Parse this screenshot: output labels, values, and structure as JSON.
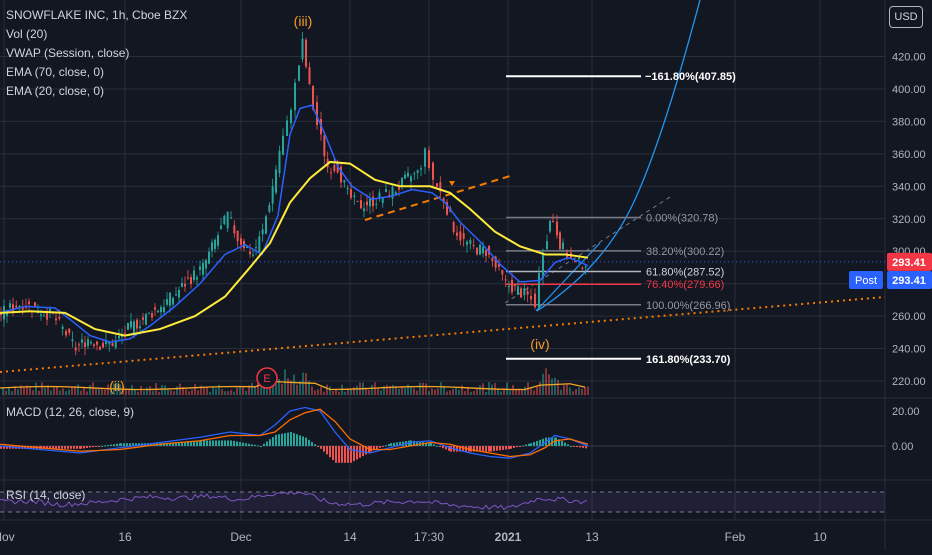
{
  "legend": {
    "title": "SNOWFLAKE INC, 1h, Cboe BZX",
    "lines": [
      "Vol (20)",
      "VWAP (Session, close)",
      "EMA (70, close, 0)",
      "EMA (20, close, 0)"
    ]
  },
  "currency_button": "USD",
  "price_badge": "293.41",
  "post_label": "Post",
  "post_value": "293.41",
  "colors": {
    "background": "#131722",
    "grid": "#2a2e39",
    "ema20": "#2962ff",
    "ema70": "#ffeb3b",
    "fib": "#ffffff",
    "trend_dotted": "#f57c00",
    "wave_label": "#f59c2a",
    "price_badge": "#f23645",
    "post_badge": "#2962ff"
  },
  "chart_data": [
    {
      "type": "line",
      "title": "SNOWFLAKE INC, 1h, Cboe BZX",
      "x_tick_labels": [
        "Nov",
        "16",
        "Dec",
        "14",
        "17:30",
        "2021",
        "13",
        "Feb",
        "10"
      ],
      "ylim": [
        210,
        448
      ],
      "y_ticks": [
        220,
        240,
        260,
        280,
        300,
        320,
        340,
        360,
        380,
        400,
        420
      ],
      "y_tick_labels": [
        "220.00",
        "240.00",
        "260.00",
        "280.00",
        "300.00",
        "320.00",
        "340.00",
        "360.00",
        "380.00",
        "400.00",
        "420.00"
      ],
      "grid": true,
      "last_price": 293.41,
      "series": [
        {
          "name": "EMA (20, close, 0)",
          "values": [
            [
              0,
              262
            ],
            [
              25,
              266
            ],
            [
              55,
              265
            ],
            [
              70,
              258
            ],
            [
              90,
              248
            ],
            [
              110,
              244
            ],
            [
              130,
              246
            ],
            [
              150,
              254
            ],
            [
              175,
              266
            ],
            [
              200,
              280
            ],
            [
              225,
              298
            ],
            [
              245,
              304
            ],
            [
              262,
              298
            ],
            [
              278,
              322
            ],
            [
              290,
              372
            ],
            [
              300,
              388
            ],
            [
              312,
              390
            ],
            [
              325,
              372
            ],
            [
              338,
              352
            ],
            [
              352,
              340
            ],
            [
              372,
              332
            ],
            [
              392,
              334
            ],
            [
              412,
              338
            ],
            [
              432,
              336
            ],
            [
              445,
              330
            ],
            [
              460,
              318
            ],
            [
              480,
              306
            ],
            [
              500,
              292
            ],
            [
              520,
              281
            ],
            [
              540,
              282
            ],
            [
              555,
              293
            ],
            [
              568,
              296
            ],
            [
              578,
              294
            ],
            [
              588,
              291
            ]
          ]
        },
        {
          "name": "EMA (70, close, 0)",
          "values": [
            [
              0,
              262
            ],
            [
              30,
              263
            ],
            [
              65,
              262
            ],
            [
              95,
              252
            ],
            [
              125,
              248
            ],
            [
              160,
              252
            ],
            [
              195,
              260
            ],
            [
              225,
              272
            ],
            [
              250,
              290
            ],
            [
              270,
              305
            ],
            [
              290,
              330
            ],
            [
              310,
              345
            ],
            [
              330,
              355
            ],
            [
              350,
              354
            ],
            [
              375,
              344
            ],
            [
              400,
              340
            ],
            [
              430,
              340
            ],
            [
              450,
              336
            ],
            [
              470,
              326
            ],
            [
              495,
              312
            ],
            [
              520,
              303
            ],
            [
              545,
              298
            ],
            [
              565,
              298
            ],
            [
              588,
              296
            ]
          ]
        },
        {
          "name": "Price",
          "values": [
            [
              0,
              260
            ],
            [
              12,
              265
            ],
            [
              25,
              268
            ],
            [
              40,
              264
            ],
            [
              55,
              260
            ],
            [
              65,
              252
            ],
            [
              78,
              240
            ],
            [
              90,
              246
            ],
            [
              105,
              242
            ],
            [
              118,
              244
            ],
            [
              130,
              252
            ],
            [
              145,
              258
            ],
            [
              160,
              265
            ],
            [
              175,
              272
            ],
            [
              190,
              282
            ],
            [
              205,
              290
            ],
            [
              220,
              310
            ],
            [
              230,
              322
            ],
            [
              240,
              308
            ],
            [
              255,
              298
            ],
            [
              265,
              312
            ],
            [
              275,
              340
            ],
            [
              282,
              362
            ],
            [
              290,
              378
            ],
            [
              298,
              402
            ],
            [
              305,
              428
            ],
            [
              312,
              400
            ],
            [
              320,
              378
            ],
            [
              330,
              352
            ],
            [
              340,
              352
            ],
            [
              350,
              335
            ],
            [
              360,
              328
            ],
            [
              372,
              330
            ],
            [
              385,
              334
            ],
            [
              398,
              338
            ],
            [
              410,
              345
            ],
            [
              420,
              348
            ],
            [
              428,
              360
            ],
            [
              436,
              344
            ],
            [
              446,
              332
            ],
            [
              456,
              315
            ],
            [
              466,
              306
            ],
            [
              476,
              302
            ],
            [
              488,
              300
            ],
            [
              498,
              290
            ],
            [
              508,
              280
            ],
            [
              520,
              276
            ],
            [
              530,
              272
            ],
            [
              538,
              268
            ],
            [
              546,
              302
            ],
            [
              552,
              318
            ],
            [
              556,
              320
            ],
            [
              562,
              305
            ],
            [
              570,
              298
            ],
            [
              578,
              292
            ],
            [
              588,
              293
            ]
          ]
        }
      ],
      "fib_levels": [
        {
          "ratio": "0.00%",
          "price": 320.78,
          "label": "0.00%(320.78)"
        },
        {
          "ratio": "38.20%",
          "price": 300.22,
          "label": "38.20%(300.22)"
        },
        {
          "ratio": "61.80%",
          "price": 287.52,
          "label": "61.80%(287.52)"
        },
        {
          "ratio": "76.40%",
          "price": 279.66,
          "label": "76.40%(279.66)"
        },
        {
          "ratio": "100.00%",
          "price": 266.96,
          "label": "100.00%(266.96)"
        },
        {
          "ratio": "161.80%",
          "price": 233.7,
          "label": "161.80%(233.70)"
        },
        {
          "ratio": "-161.80%",
          "price": 407.85,
          "label": "−161.80%(407.85)"
        }
      ],
      "wave_labels": [
        "(iii)",
        "(ii)",
        "(iv)"
      ],
      "event_marker": "E"
    },
    {
      "type": "line",
      "title": "MACD (12, 26, close, 9)",
      "ylim": [
        -12,
        28
      ],
      "y_tick_labels": [
        "20.00",
        "0.00"
      ],
      "series": [
        {
          "name": "MACD",
          "values": [
            [
              0,
              0
            ],
            [
              40,
              -2
            ],
            [
              80,
              -4
            ],
            [
              120,
              -1
            ],
            [
              160,
              2
            ],
            [
              200,
              5
            ],
            [
              230,
              8
            ],
            [
              260,
              6
            ],
            [
              275,
              12
            ],
            [
              290,
              20
            ],
            [
              305,
              22
            ],
            [
              320,
              20
            ],
            [
              335,
              8
            ],
            [
              350,
              -2
            ],
            [
              370,
              -4
            ],
            [
              390,
              -1
            ],
            [
              410,
              2
            ],
            [
              430,
              3
            ],
            [
              450,
              -1
            ],
            [
              470,
              -4
            ],
            [
              490,
              -6
            ],
            [
              510,
              -7
            ],
            [
              530,
              -4
            ],
            [
              545,
              2
            ],
            [
              555,
              6
            ],
            [
              570,
              4
            ],
            [
              588,
              0
            ]
          ]
        },
        {
          "name": "Signal",
          "values": [
            [
              0,
              1
            ],
            [
              40,
              -1
            ],
            [
              80,
              -3
            ],
            [
              120,
              -2
            ],
            [
              160,
              1
            ],
            [
              200,
              3
            ],
            [
              230,
              6
            ],
            [
              260,
              6
            ],
            [
              275,
              8
            ],
            [
              290,
              15
            ],
            [
              305,
              19
            ],
            [
              320,
              21
            ],
            [
              335,
              14
            ],
            [
              350,
              4
            ],
            [
              370,
              -2
            ],
            [
              390,
              -2
            ],
            [
              410,
              0
            ],
            [
              430,
              2
            ],
            [
              450,
              1
            ],
            [
              470,
              -2
            ],
            [
              490,
              -4
            ],
            [
              510,
              -6
            ],
            [
              530,
              -5
            ],
            [
              545,
              -1
            ],
            [
              555,
              3
            ],
            [
              570,
              4
            ],
            [
              588,
              1
            ]
          ]
        }
      ]
    },
    {
      "type": "line",
      "title": "RSI (14, close)",
      "ylim": [
        20,
        80
      ],
      "series": [
        {
          "name": "RSI",
          "values": [
            [
              0,
              50
            ],
            [
              30,
              52
            ],
            [
              60,
              45
            ],
            [
              90,
              48
            ],
            [
              120,
              55
            ],
            [
              150,
              60
            ],
            [
              180,
              58
            ],
            [
              210,
              62
            ],
            [
              240,
              55
            ],
            [
              270,
              66
            ],
            [
              300,
              70
            ],
            [
              330,
              48
            ],
            [
              360,
              45
            ],
            [
              390,
              50
            ],
            [
              420,
              52
            ],
            [
              450,
              44
            ],
            [
              480,
              40
            ],
            [
              510,
              38
            ],
            [
              540,
              58
            ],
            [
              560,
              55
            ],
            [
              588,
              50
            ]
          ]
        }
      ]
    }
  ]
}
